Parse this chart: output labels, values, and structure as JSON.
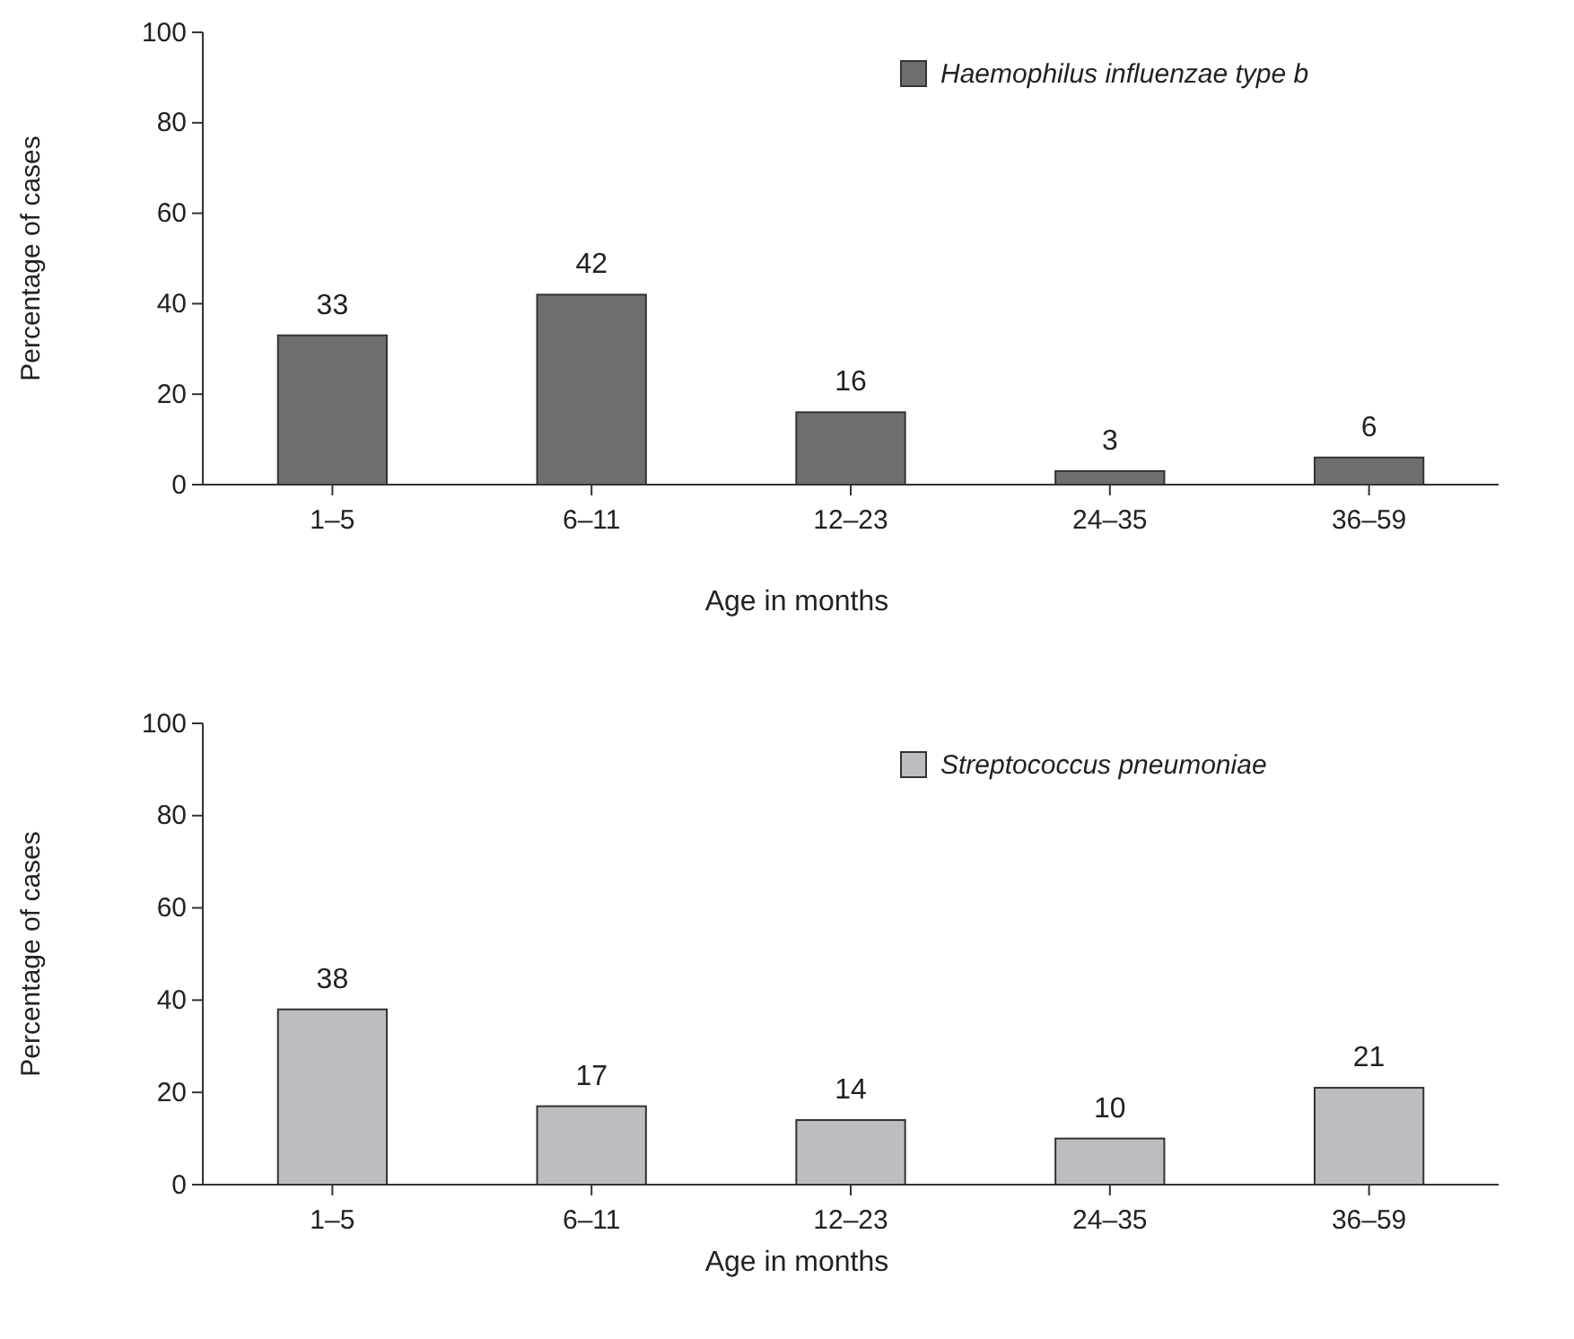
{
  "chart_data": [
    {
      "type": "bar",
      "categories": [
        "1–5",
        "6–11",
        "12–23",
        "24–35",
        "36–59"
      ],
      "xlabel": "Age in months",
      "ylabel": "Percentage of cases",
      "series": [
        {
          "name": "Haemophilus influenzae type b",
          "color": "#6e6e6e",
          "values": [
            33,
            42,
            16,
            3,
            6
          ]
        }
      ],
      "ylim": [
        0,
        100
      ],
      "yticks": [
        0,
        20,
        40,
        60,
        80,
        100
      ],
      "data_labels": true,
      "legend": "top right"
    },
    {
      "type": "bar",
      "categories": [
        "1–5",
        "6–11",
        "12–23",
        "24–35",
        "36–59"
      ],
      "xlabel": "Age in months",
      "ylabel": "Percentage of cases",
      "series": [
        {
          "name": "Streptococcus pneumoniae",
          "color": "#bcbdc0",
          "values": [
            38,
            17,
            14,
            10,
            21
          ]
        }
      ],
      "ylim": [
        0,
        100
      ],
      "yticks": [
        0,
        20,
        40,
        60,
        80,
        100
      ],
      "data_labels": true,
      "legend": "top right"
    }
  ]
}
